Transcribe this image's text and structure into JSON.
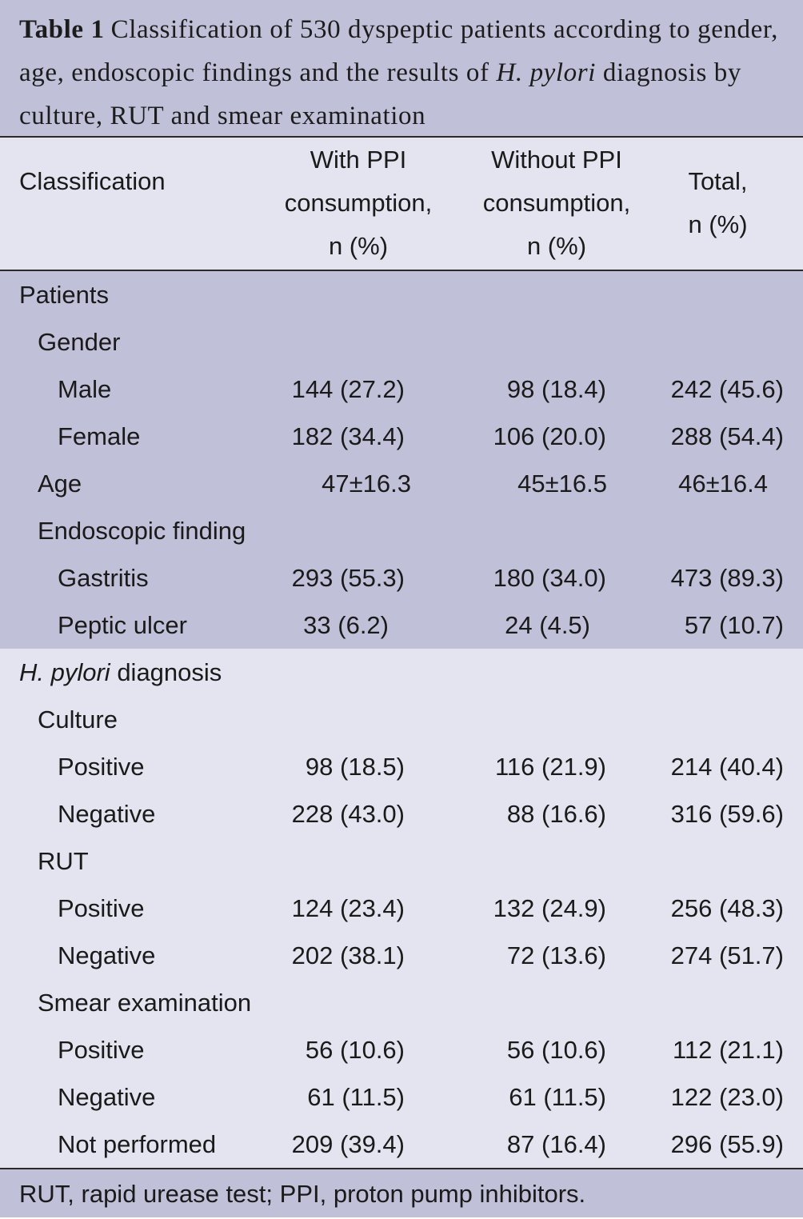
{
  "caption": {
    "label": "Table 1",
    "text_before": "Classification of 530 dyspeptic patients according to gender, age, endoscopic findings and the results of ",
    "organism": "H. pylori",
    "text_after": " diagnosis by culture, RUT and smear examination"
  },
  "header": {
    "classification": "Classification",
    "with_ppi": [
      "With PPI",
      "consumption,",
      "n (%)"
    ],
    "without_ppi": [
      "Without PPI",
      "consumption,",
      "n (%)"
    ],
    "total": [
      "Total,",
      "n (%)"
    ]
  },
  "patients_rows": [
    {
      "label": "Patients",
      "level": 0,
      "values": [
        "",
        "",
        ""
      ]
    },
    {
      "label": "Gender",
      "level": 1,
      "values": [
        "",
        "",
        ""
      ]
    },
    {
      "label": "Male",
      "level": 2,
      "values": [
        "144 (27.2)",
        "98 (18.4)",
        "242 (45.6)"
      ]
    },
    {
      "label": "Female",
      "level": 2,
      "values": [
        "182 (34.4)",
        "106 (20.0)",
        "288 (54.4)"
      ]
    },
    {
      "label": "Age",
      "level": 1,
      "values": [
        "47±16.3",
        "45±16.5",
        "46±16.4"
      ]
    },
    {
      "label": "Endoscopic finding",
      "level": 1,
      "values": [
        "",
        "",
        ""
      ]
    },
    {
      "label": "Gastritis",
      "level": 2,
      "values": [
        "293 (55.3)",
        "180 (34.0)",
        "473 (89.3)"
      ]
    },
    {
      "label": "Peptic ulcer",
      "level": 2,
      "values": [
        "33 (6.2)",
        "24 (4.5)",
        "57 (10.7)"
      ]
    }
  ],
  "diagnosis_heading": {
    "organism": "H. pylori",
    "rest": " diagnosis"
  },
  "diagnosis_rows": [
    {
      "label": "Culture",
      "level": 1,
      "values": [
        "",
        "",
        ""
      ]
    },
    {
      "label": "Positive",
      "level": 2,
      "values": [
        "98 (18.5)",
        "116 (21.9)",
        "214 (40.4)"
      ]
    },
    {
      "label": "Negative",
      "level": 2,
      "values": [
        "228 (43.0)",
        "88 (16.6)",
        "316 (59.6)"
      ]
    },
    {
      "label": "RUT",
      "level": 1,
      "values": [
        "",
        "",
        ""
      ]
    },
    {
      "label": "Positive",
      "level": 2,
      "values": [
        "124 (23.4)",
        "132 (24.9)",
        "256 (48.3)"
      ]
    },
    {
      "label": "Negative",
      "level": 2,
      "values": [
        "202 (38.1)",
        "72 (13.6)",
        "274 (51.7)"
      ]
    },
    {
      "label": "Smear examination",
      "level": 1,
      "values": [
        "",
        "",
        ""
      ]
    },
    {
      "label": "Positive",
      "level": 2,
      "values": [
        "56 (10.6)",
        "56 (10.6)",
        "112 (21.1)"
      ]
    },
    {
      "label": "Negative",
      "level": 2,
      "values": [
        "61 (11.5)",
        "61 (11.5)",
        "122 (23.0)"
      ]
    },
    {
      "label": "Not performed",
      "level": 2,
      "values": [
        "209 (39.4)",
        "87 (16.4)",
        "296 (55.9)"
      ]
    }
  ],
  "footnote": "RUT, rapid urease test; PPI, proton pump inhibitors."
}
